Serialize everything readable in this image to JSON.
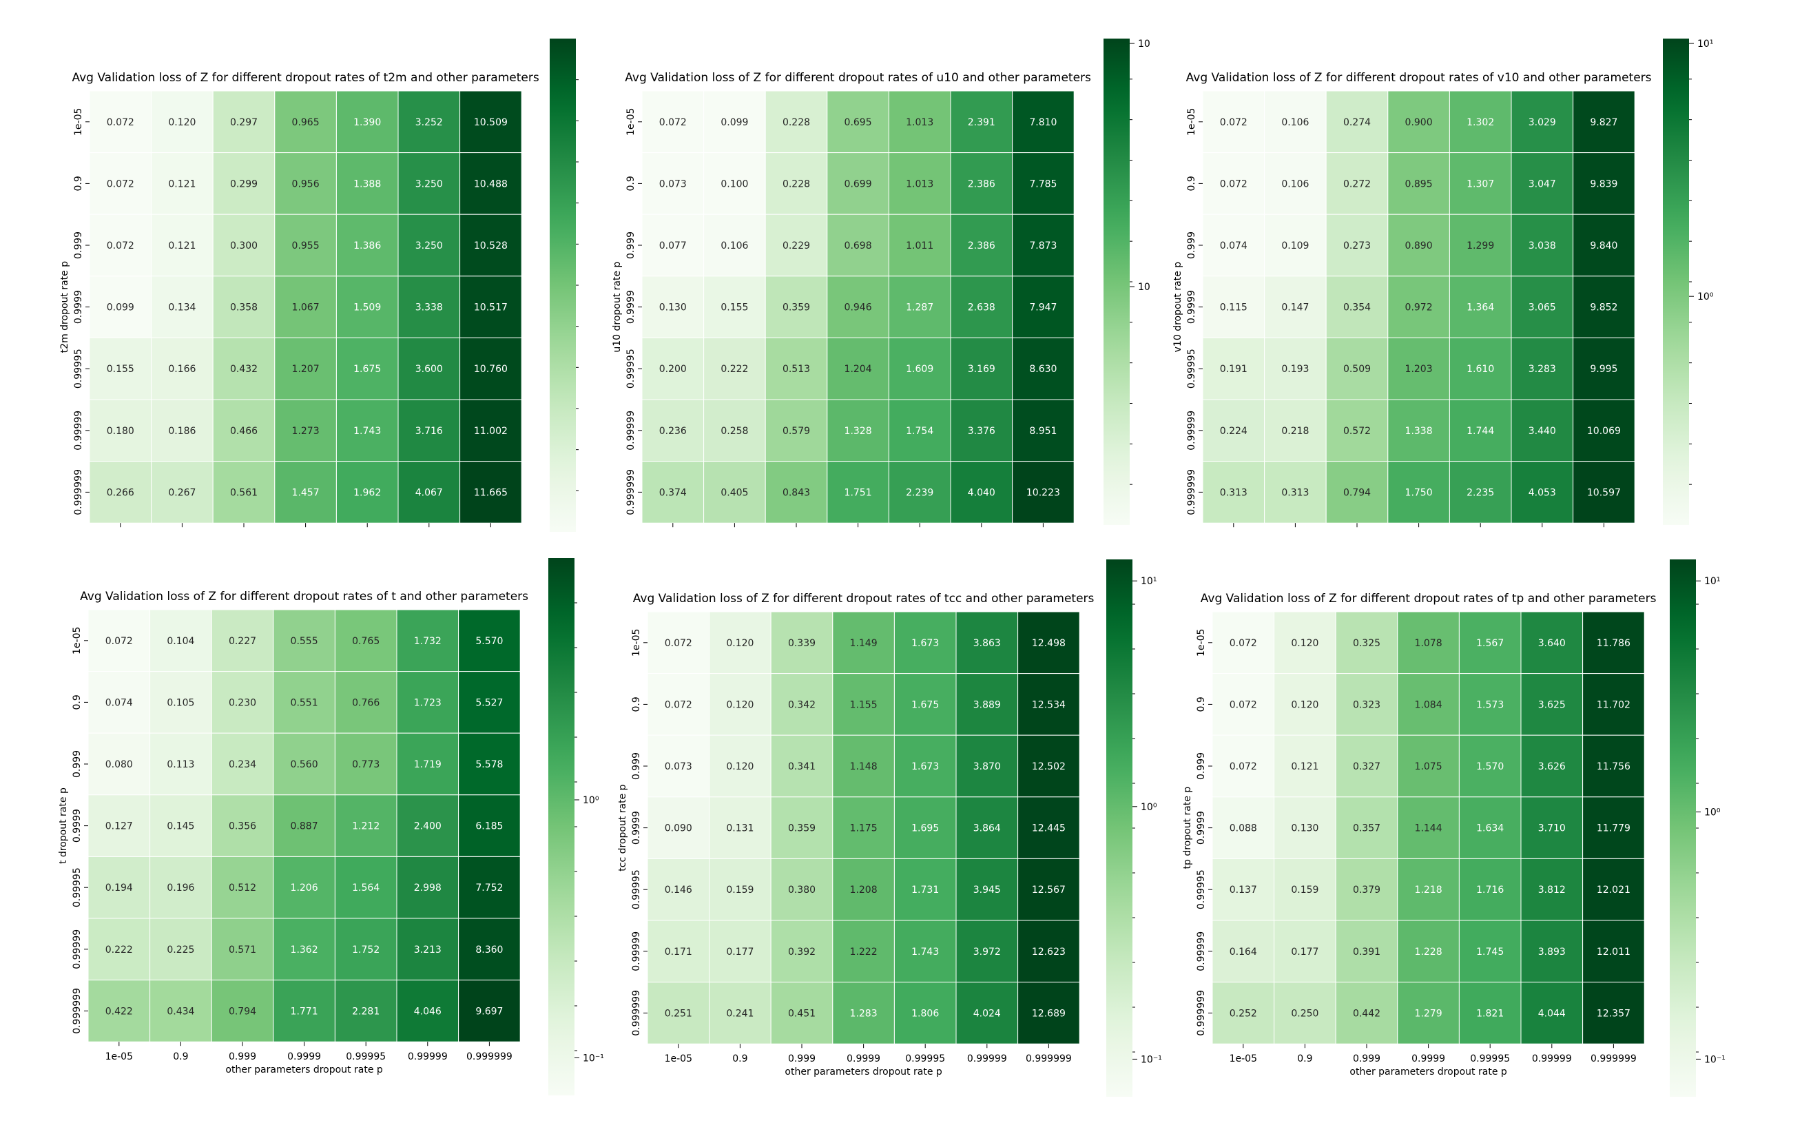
{
  "colorscale": {
    "name": "Greens",
    "stops": [
      "#f7fcf5",
      "#e5f5e0",
      "#c7e9c0",
      "#a1d99b",
      "#74c476",
      "#41ab5d",
      "#238b45",
      "#006d2c",
      "#00441b"
    ],
    "scale": "log"
  },
  "chart_data": [
    {
      "type": "heatmap",
      "title": "Avg Validation loss of Z for different dropout rates of t2m and other parameters",
      "ylabel": "t2m dropout rate p",
      "xlabel": "",
      "x_tick_labels": [],
      "y_tick_labels": [
        "1e-05",
        "0.9",
        "0.999",
        "0.9999",
        "0.99995",
        "0.99999",
        "0.999999"
      ],
      "values": [
        [
          "0.072",
          "0.120",
          "0.297",
          "0.965",
          "1.390",
          "3.252",
          "10.509"
        ],
        [
          "0.072",
          "0.121",
          "0.299",
          "0.956",
          "1.388",
          "3.250",
          "10.488"
        ],
        [
          "0.072",
          "0.121",
          "0.300",
          "0.955",
          "1.386",
          "3.250",
          "10.528"
        ],
        [
          "0.099",
          "0.134",
          "0.358",
          "1.067",
          "1.509",
          "3.338",
          "10.517"
        ],
        [
          "0.155",
          "0.166",
          "0.432",
          "1.207",
          "1.675",
          "3.600",
          "10.760"
        ],
        [
          "0.180",
          "0.186",
          "0.466",
          "1.273",
          "1.743",
          "3.716",
          "11.002"
        ],
        [
          "0.266",
          "0.267",
          "0.561",
          "1.457",
          "1.962",
          "4.067",
          "11.665"
        ]
      ],
      "colorbar": {
        "scale": "log",
        "vmin": 0.1,
        "vmax": 11.665,
        "tick_labels": []
      }
    },
    {
      "type": "heatmap",
      "title": "Avg Validation loss of Z for different dropout rates of u10 and other parameters",
      "ylabel": "u10 dropout rate p",
      "xlabel": "",
      "x_tick_labels": [],
      "y_tick_labels": [
        "1e-05",
        "0.9",
        "0.999",
        "0.9999",
        "0.99995",
        "0.99999",
        "0.999999"
      ],
      "values": [
        [
          "0.072",
          "0.099",
          "0.228",
          "0.695",
          "1.013",
          "2.391",
          "7.810"
        ],
        [
          "0.073",
          "0.100",
          "0.228",
          "0.699",
          "1.013",
          "2.386",
          "7.785"
        ],
        [
          "0.077",
          "0.106",
          "0.229",
          "0.698",
          "1.011",
          "2.386",
          "7.873"
        ],
        [
          "0.130",
          "0.155",
          "0.359",
          "0.946",
          "1.287",
          "2.638",
          "7.947"
        ],
        [
          "0.200",
          "0.222",
          "0.513",
          "1.204",
          "1.609",
          "3.169",
          "8.630"
        ],
        [
          "0.236",
          "0.258",
          "0.579",
          "1.328",
          "1.754",
          "3.376",
          "8.951"
        ],
        [
          "0.374",
          "0.405",
          "0.843",
          "1.751",
          "2.239",
          "4.040",
          "10.223"
        ]
      ],
      "colorbar": {
        "scale": "log",
        "vmin": 0.1,
        "vmax": 10.223,
        "tick_labels": [
          "10",
          "10"
        ]
      }
    },
    {
      "type": "heatmap",
      "title": "Avg Validation loss of Z for different dropout rates of v10 and other parameters",
      "ylabel": "v10 dropout rate p",
      "xlabel": "",
      "x_tick_labels": [],
      "y_tick_labels": [
        "1e-05",
        "0.9",
        "0.999",
        "0.9999",
        "0.99995",
        "0.99999",
        "0.999999"
      ],
      "values": [
        [
          "0.072",
          "0.106",
          "0.274",
          "0.900",
          "1.302",
          "3.029",
          "9.827"
        ],
        [
          "0.072",
          "0.106",
          "0.272",
          "0.895",
          "1.307",
          "3.047",
          "9.839"
        ],
        [
          "0.074",
          "0.109",
          "0.273",
          "0.890",
          "1.299",
          "3.038",
          "9.840"
        ],
        [
          "0.115",
          "0.147",
          "0.354",
          "0.972",
          "1.364",
          "3.065",
          "9.852"
        ],
        [
          "0.191",
          "0.193",
          "0.509",
          "1.203",
          "1.610",
          "3.283",
          "9.995"
        ],
        [
          "0.224",
          "0.218",
          "0.572",
          "1.338",
          "1.744",
          "3.440",
          "10.069"
        ],
        [
          "0.313",
          "0.313",
          "0.794",
          "1.750",
          "2.235",
          "4.053",
          "10.597"
        ]
      ],
      "colorbar": {
        "scale": "log",
        "vmin": 0.1,
        "vmax": 10.597,
        "tick_labels": [
          "10¹",
          "10⁰"
        ]
      }
    },
    {
      "type": "heatmap",
      "title": "Avg Validation loss of Z for different dropout rates of t and other parameters",
      "ylabel": "t dropout rate p",
      "xlabel": "other parameters dropout rate p",
      "x_tick_labels": [
        "1e-05",
        "0.9",
        "0.999",
        "0.9999",
        "0.99995",
        "0.99999",
        "0.999999"
      ],
      "y_tick_labels": [
        "1e-05",
        "0.9",
        "0.999",
        "0.9999",
        "0.99995",
        "0.99999",
        "0.999999"
      ],
      "values": [
        [
          "0.072",
          "0.104",
          "0.227",
          "0.555",
          "0.765",
          "1.732",
          "5.570"
        ],
        [
          "0.074",
          "0.105",
          "0.230",
          "0.551",
          "0.766",
          "1.723",
          "5.527"
        ],
        [
          "0.080",
          "0.113",
          "0.234",
          "0.560",
          "0.773",
          "1.719",
          "5.578"
        ],
        [
          "0.127",
          "0.145",
          "0.356",
          "0.887",
          "1.212",
          "2.400",
          "6.185"
        ],
        [
          "0.194",
          "0.196",
          "0.512",
          "1.206",
          "1.564",
          "2.998",
          "7.752"
        ],
        [
          "0.222",
          "0.225",
          "0.571",
          "1.362",
          "1.752",
          "3.213",
          "8.360"
        ],
        [
          "0.422",
          "0.434",
          "0.794",
          "1.771",
          "2.281",
          "4.046",
          "9.697"
        ]
      ],
      "colorbar": {
        "scale": "log",
        "vmin": 0.07,
        "vmax": 9.697,
        "tick_labels": [
          "10⁰",
          "10⁻¹"
        ]
      }
    },
    {
      "type": "heatmap",
      "title": "Avg Validation loss of Z for different dropout rates of tcc and other parameters",
      "ylabel": "tcc dropout rate p",
      "xlabel": "other parameters dropout rate p",
      "x_tick_labels": [
        "1e-05",
        "0.9",
        "0.999",
        "0.9999",
        "0.99995",
        "0.99999",
        "0.999999"
      ],
      "y_tick_labels": [
        "1e-05",
        "0.9",
        "0.999",
        "0.9999",
        "0.99995",
        "0.99999",
        "0.999999"
      ],
      "values": [
        [
          "0.072",
          "0.120",
          "0.339",
          "1.149",
          "1.673",
          "3.863",
          "12.498"
        ],
        [
          "0.072",
          "0.120",
          "0.342",
          "1.155",
          "1.675",
          "3.889",
          "12.534"
        ],
        [
          "0.073",
          "0.120",
          "0.341",
          "1.148",
          "1.673",
          "3.870",
          "12.502"
        ],
        [
          "0.090",
          "0.131",
          "0.359",
          "1.175",
          "1.695",
          "3.864",
          "12.445"
        ],
        [
          "0.146",
          "0.159",
          "0.380",
          "1.208",
          "1.731",
          "3.945",
          "12.567"
        ],
        [
          "0.171",
          "0.177",
          "0.392",
          "1.222",
          "1.743",
          "3.972",
          "12.623"
        ],
        [
          "0.251",
          "0.241",
          "0.451",
          "1.283",
          "1.806",
          "4.024",
          "12.689"
        ]
      ],
      "colorbar": {
        "scale": "log",
        "vmin": 0.07,
        "vmax": 12.689,
        "tick_labels": [
          "10¹",
          "10⁰",
          "10⁻¹"
        ]
      }
    },
    {
      "type": "heatmap",
      "title": "Avg Validation loss of Z for different dropout rates of tp and other parameters",
      "ylabel": "tp dropout rate p",
      "xlabel": "other parameters dropout rate p",
      "x_tick_labels": [
        "1e-05",
        "0.9",
        "0.999",
        "0.9999",
        "0.99995",
        "0.99999",
        "0.999999"
      ],
      "y_tick_labels": [
        "1e-05",
        "0.9",
        "0.999",
        "0.9999",
        "0.99995",
        "0.99999",
        "0.999999"
      ],
      "values": [
        [
          "0.072",
          "0.120",
          "0.325",
          "1.078",
          "1.567",
          "3.640",
          "11.786"
        ],
        [
          "0.072",
          "0.120",
          "0.323",
          "1.084",
          "1.573",
          "3.625",
          "11.702"
        ],
        [
          "0.072",
          "0.121",
          "0.327",
          "1.075",
          "1.570",
          "3.626",
          "11.756"
        ],
        [
          "0.088",
          "0.130",
          "0.357",
          "1.144",
          "1.634",
          "3.710",
          "11.779"
        ],
        [
          "0.137",
          "0.159",
          "0.379",
          "1.218",
          "1.716",
          "3.812",
          "12.021"
        ],
        [
          "0.164",
          "0.177",
          "0.391",
          "1.228",
          "1.745",
          "3.893",
          "12.011"
        ],
        [
          "0.252",
          "0.250",
          "0.442",
          "1.279",
          "1.821",
          "4.044",
          "12.357"
        ]
      ],
      "colorbar": {
        "scale": "log",
        "vmin": 0.07,
        "vmax": 12.357,
        "tick_labels": [
          "10¹",
          "10⁰",
          "10⁻¹"
        ]
      }
    }
  ]
}
